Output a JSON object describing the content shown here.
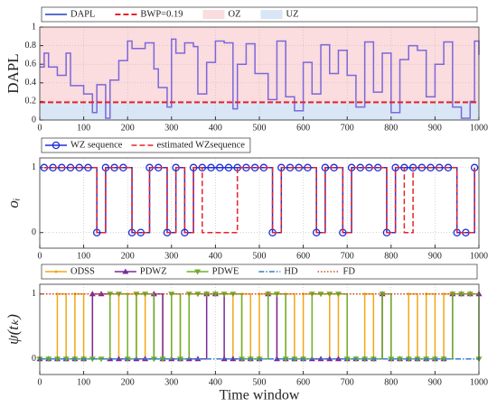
{
  "chart_data": [
    {
      "type": "line",
      "ylabel": "DAPL",
      "drawstyle": "steps-post",
      "grid": true,
      "xlim": [
        0,
        1000
      ],
      "xticks": [
        0,
        100,
        200,
        300,
        400,
        500,
        600,
        700,
        800,
        900,
        1000
      ],
      "ylim": [
        0,
        1
      ],
      "yticks": [
        0,
        0.2,
        0.4,
        0.6,
        0.8,
        1
      ],
      "x": [
        0,
        10,
        20,
        40,
        60,
        70,
        100,
        120,
        130,
        150,
        160,
        180,
        200,
        210,
        240,
        260,
        270,
        290,
        300,
        310,
        330,
        350,
        360,
        380,
        400,
        420,
        440,
        450,
        470,
        490,
        520,
        540,
        560,
        580,
        600,
        620,
        640,
        660,
        680,
        700,
        720,
        740,
        760,
        780,
        800,
        820,
        840,
        860,
        880,
        900,
        920,
        940,
        960,
        980,
        990,
        1000
      ],
      "series": [
        {
          "name": "DAPL",
          "color": "#7b68d9",
          "legend_color": "#1f3fbf",
          "linestyle": "solid",
          "values": [
            0.57,
            0.72,
            0.57,
            0.48,
            0.72,
            0.37,
            0.28,
            0.08,
            0.38,
            0.02,
            0.43,
            0.64,
            0.85,
            0.77,
            0.83,
            0.55,
            0.35,
            0.14,
            0.87,
            0.72,
            0.83,
            0.79,
            0.28,
            0.62,
            0.85,
            0.83,
            0.12,
            0.6,
            0.82,
            0.5,
            0.22,
            0.85,
            0.25,
            0.1,
            0.62,
            0.28,
            0.81,
            0.5,
            0.75,
            0.48,
            0.14,
            0.84,
            0.3,
            0.72,
            0.08,
            0.65,
            0.8,
            0.75,
            0.25,
            0.6,
            0.84,
            0.14,
            0.02,
            0.2,
            0.85,
            0.7
          ]
        }
      ],
      "reference_line": {
        "name": "BWP=0.19",
        "value": 0.19,
        "color": "#e8222a",
        "linestyle": "dashed"
      },
      "regions": [
        {
          "name": "OZ",
          "color": "#fbdcdf",
          "side": "above"
        },
        {
          "name": "UZ",
          "color": "#d9e6f6",
          "side": "below"
        }
      ]
    },
    {
      "type": "line",
      "ylabel": "oᵢ",
      "drawstyle": "steps-post",
      "grid": true,
      "xlim": [
        0,
        1000
      ],
      "xticks": [
        0,
        100,
        200,
        300,
        400,
        500,
        600,
        700,
        800,
        900,
        1000
      ],
      "ylim": [
        -0.24,
        1.15
      ],
      "yticks": [
        0,
        1
      ],
      "x": [
        10,
        30,
        50,
        70,
        90,
        110,
        130,
        150,
        170,
        190,
        210,
        230,
        250,
        270,
        290,
        310,
        330,
        350,
        370,
        390,
        410,
        430,
        450,
        470,
        490,
        510,
        530,
        550,
        570,
        590,
        610,
        630,
        650,
        670,
        690,
        710,
        730,
        750,
        770,
        790,
        810,
        830,
        850,
        870,
        890,
        910,
        930,
        950,
        970,
        990
      ],
      "series": [
        {
          "name": "WZ sequence",
          "color": "#1f2fd6",
          "linestyle": "solid",
          "marker": "o",
          "values": [
            1,
            1,
            1,
            1,
            1,
            1,
            0,
            1,
            1,
            1,
            0,
            0,
            1,
            1,
            0,
            1,
            0,
            1,
            1,
            1,
            1,
            1,
            1,
            1,
            1,
            1,
            0,
            1,
            1,
            1,
            1,
            0,
            1,
            1,
            0,
            1,
            1,
            1,
            1,
            0,
            1,
            1,
            1,
            1,
            1,
            1,
            1,
            0,
            0,
            1
          ]
        },
        {
          "name": "estimated WZsequence",
          "color": "#e8222a",
          "linestyle": "dashed",
          "values": [
            1,
            1,
            1,
            1,
            1,
            1,
            0,
            1,
            1,
            1,
            0,
            0,
            1,
            1,
            0,
            1,
            0,
            1,
            0,
            0,
            0,
            0,
            1,
            1,
            1,
            1,
            0,
            1,
            1,
            1,
            1,
            0,
            1,
            1,
            0,
            1,
            1,
            1,
            1,
            0,
            1,
            0,
            1,
            1,
            1,
            1,
            1,
            0,
            0,
            1
          ]
        }
      ]
    },
    {
      "type": "line",
      "ylabel": "ψ(tₖ)",
      "xlabel": "Time window",
      "drawstyle": "steps-post",
      "grid": true,
      "xlim": [
        0,
        1000
      ],
      "xticks": [
        0,
        100,
        200,
        300,
        400,
        500,
        600,
        700,
        800,
        900,
        1000
      ],
      "ylim": [
        -0.24,
        1.15
      ],
      "yticks": [
        0,
        1
      ],
      "x": [
        0,
        20,
        40,
        60,
        80,
        100,
        120,
        140,
        160,
        180,
        200,
        220,
        240,
        260,
        280,
        300,
        320,
        340,
        360,
        380,
        400,
        420,
        440,
        460,
        480,
        500,
        520,
        540,
        560,
        580,
        600,
        620,
        640,
        660,
        680,
        700,
        720,
        740,
        760,
        780,
        800,
        820,
        840,
        860,
        880,
        900,
        920,
        940,
        960,
        980,
        1000
      ],
      "series": [
        {
          "name": "ODSS",
          "color": "#f0a818",
          "linestyle": "solid",
          "marker": "dot",
          "values": [
            0,
            0,
            1,
            0,
            1,
            0,
            1,
            1,
            0,
            1,
            1,
            0,
            1,
            1,
            0,
            1,
            0,
            1,
            1,
            1,
            1,
            1,
            0,
            1,
            0,
            1,
            1,
            0,
            1,
            0,
            1,
            1,
            1,
            0,
            1,
            0,
            0,
            1,
            0,
            1,
            0,
            0,
            1,
            0,
            1,
            0,
            1,
            1,
            1,
            1,
            1
          ]
        },
        {
          "name": "PDWZ",
          "color": "#7a2a9a",
          "linestyle": "solid",
          "marker": "tri",
          "values": [
            0,
            0,
            0,
            0,
            0,
            0,
            1,
            1,
            0,
            0,
            0,
            0,
            0,
            1,
            0,
            0,
            0,
            0,
            0,
            1,
            1,
            0,
            0,
            0,
            0,
            0,
            1,
            0,
            0,
            0,
            0,
            0,
            0,
            0,
            0,
            0,
            0,
            0,
            0,
            1,
            0,
            0,
            0,
            0,
            0,
            0,
            0,
            1,
            1,
            1,
            1
          ]
        },
        {
          "name": "PDWE",
          "color": "#6fae2a",
          "linestyle": "solid",
          "marker": "tridown",
          "values": [
            0,
            0,
            0,
            0,
            0,
            0,
            0,
            0,
            1,
            1,
            0,
            1,
            1,
            0,
            0,
            1,
            0,
            1,
            1,
            1,
            1,
            1,
            1,
            0,
            0,
            0,
            1,
            1,
            0,
            0,
            0,
            1,
            1,
            1,
            1,
            0,
            0,
            0,
            0,
            1,
            0,
            0,
            0,
            0,
            0,
            0,
            0,
            1,
            1,
            1,
            0
          ]
        },
        {
          "name": "HD",
          "color": "#2f7fd0",
          "linestyle": "dashdot",
          "x": [
            0,
            1000
          ],
          "values": [
            0,
            0
          ]
        },
        {
          "name": "FD",
          "color": "#d94a1a",
          "linestyle": "dotted",
          "x": [
            0,
            1000
          ],
          "values": [
            1,
            1
          ]
        }
      ]
    }
  ]
}
